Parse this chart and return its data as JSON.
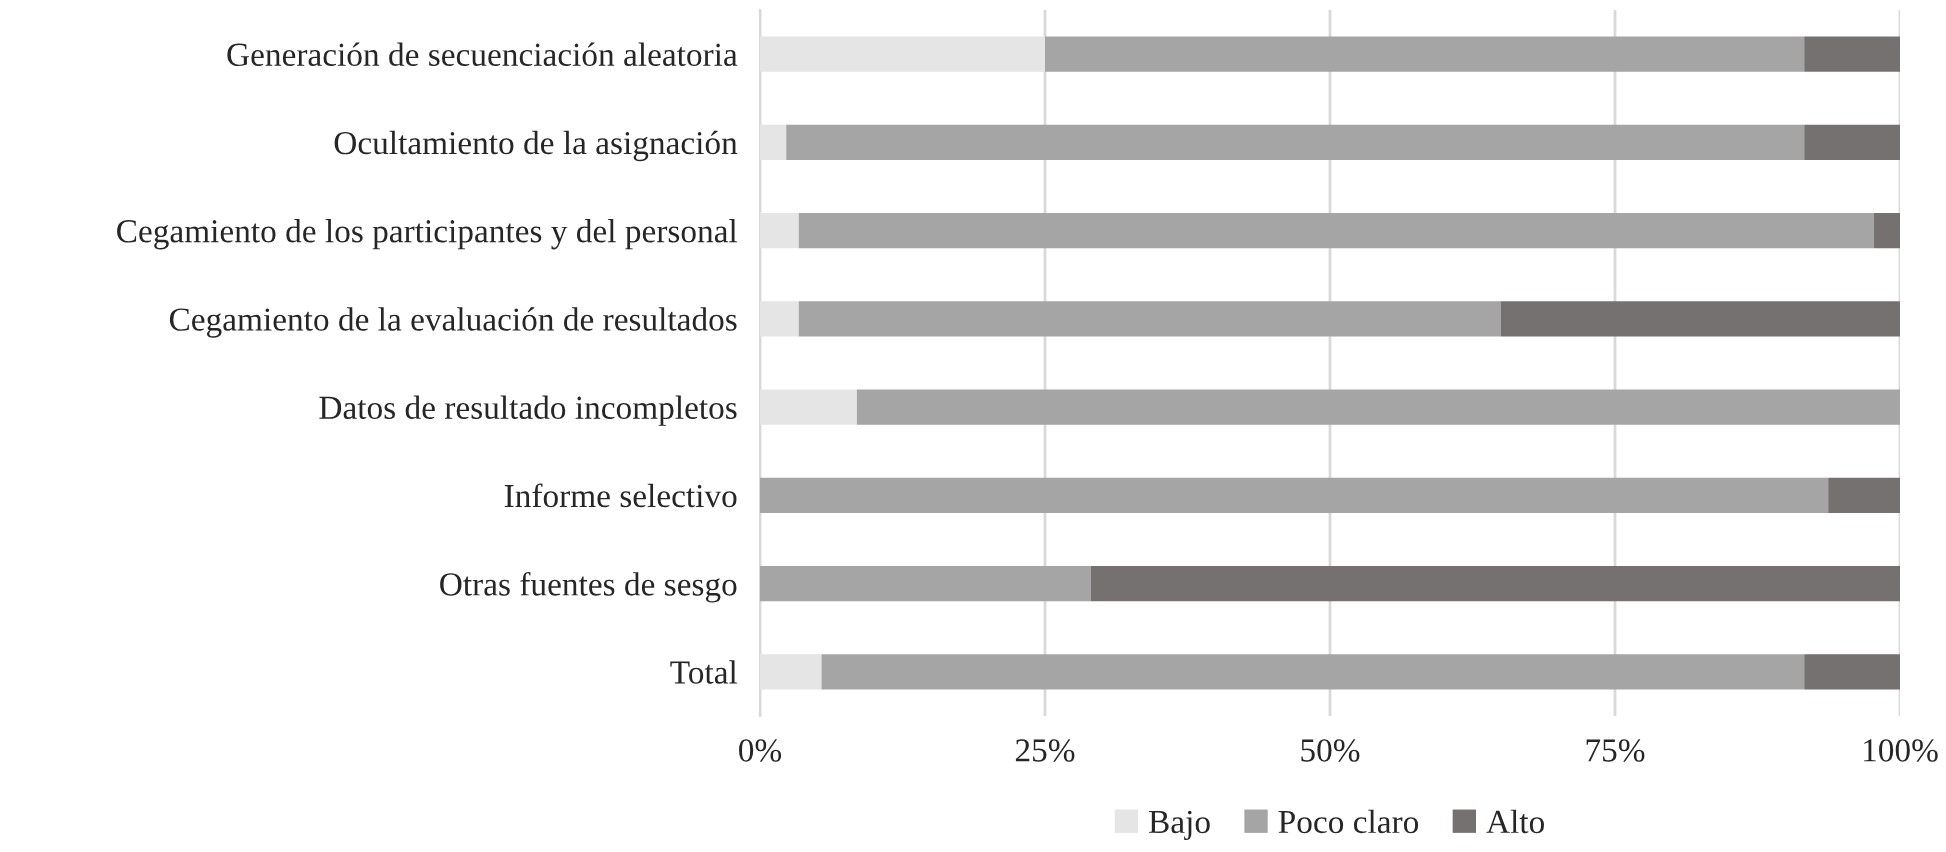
{
  "chart_data": {
    "type": "bar",
    "orientation": "horizontal",
    "stacked": true,
    "categories": [
      "Generación de secuenciación aleatoria",
      "Ocultamiento de la asignación",
      "Cegamiento de los participantes y del personal",
      "Cegamiento de la evaluación de resultados",
      "Datos de resultado incompletos",
      "Informe selectivo",
      "Otras fuentes de sesgo",
      "Total"
    ],
    "series": [
      {
        "name": "Bajo",
        "color": "#e6e5e6",
        "values": [
          25.0,
          2.3,
          3.4,
          3.4,
          8.5,
          null,
          null,
          5.4
        ]
      },
      {
        "name": "Poco claro",
        "color": "#a5a5a5",
        "values": [
          66.6,
          89.3,
          94.3,
          61.6,
          91.5,
          93.7,
          29.0,
          86.2
        ]
      },
      {
        "name": "Alto",
        "color": "#767171",
        "values": [
          8.4,
          8.4,
          2.3,
          35.0,
          null,
          6.3,
          71.0,
          8.4
        ]
      }
    ],
    "xlim": [
      0,
      100
    ],
    "xticks": [
      {
        "value": 0,
        "label": "0%"
      },
      {
        "value": 25,
        "label": "25%"
      },
      {
        "value": 50,
        "label": "50%"
      },
      {
        "value": 75,
        "label": "75%"
      },
      {
        "value": 100,
        "label": "100%"
      }
    ],
    "grid": "x",
    "legend": "bottom"
  }
}
